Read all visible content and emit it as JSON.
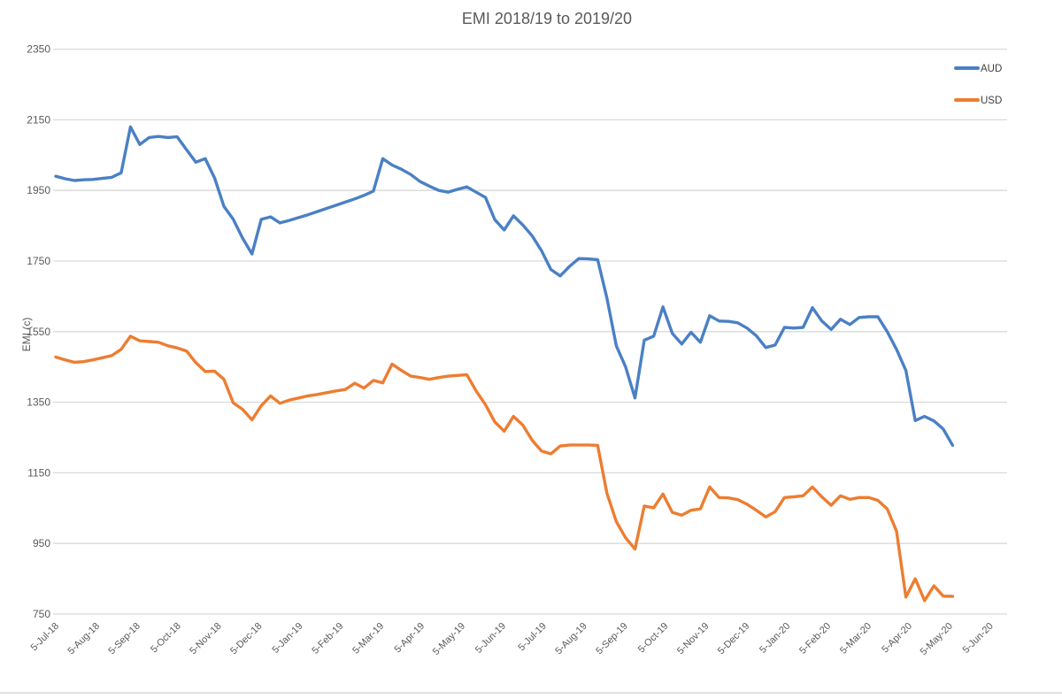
{
  "title": "EMI 2018/19 to 2019/20",
  "colors": {
    "aud": "#4A80C4",
    "usd": "#ED7D31",
    "text": "#595959",
    "legend_text": "#404040",
    "grid": "#D9D9D9",
    "page_border": "#D9D9D9"
  },
  "legend": {
    "aud_label": "AUD",
    "usd_label": "USD"
  },
  "chart_data": {
    "type": "line",
    "title": "EMI 2018/19 to 2019/20",
    "xlabel": "",
    "ylabel": "EMI (c)",
    "ylim": [
      750,
      2350
    ],
    "ytick_step": 200,
    "ytick_labels": [
      "2350",
      "2150",
      "1950",
      "1750",
      "1550",
      "1350",
      "1150",
      "950",
      "750"
    ],
    "grid": "horizontal",
    "legend_position": "top-right",
    "x_tick_labels": [
      "5-Jul-18",
      "5-Aug-18",
      "5-Sep-18",
      "5-Oct-18",
      "5-Nov-18",
      "5-Dec-18",
      "5-Jan-19",
      "5-Feb-19",
      "5-Mar-19",
      "5-Apr-19",
      "5-May-19",
      "5-Jun-19",
      "5-Jul-19",
      "5-Aug-19",
      "5-Sep-19",
      "5-Oct-19",
      "5-Nov-19",
      "5-Dec-19",
      "5-Jan-20",
      "5-Feb-20",
      "5-Mar-20",
      "5-Apr-20",
      "5-May-20",
      "5-Jun-20"
    ],
    "x_unit": "weeks starting 5-Jul-18, monthly axis ticks",
    "series": [
      {
        "name": "AUD",
        "color": "#4A80C4",
        "values": [
          1990,
          1983,
          1978,
          1980,
          1981,
          1984,
          1987,
          2000,
          2130,
          2080,
          2100,
          2103,
          2100,
          2102,
          2065,
          2030,
          2040,
          1985,
          1905,
          1868,
          1815,
          1770,
          1868,
          1875,
          1858,
          1865,
          1873,
          1881,
          1890,
          1899,
          1908,
          1917,
          1926,
          1936,
          1948,
          2040,
          2022,
          2010,
          1995,
          1975,
          1962,
          1950,
          1945,
          1953,
          1960,
          1945,
          1930,
          1867,
          1838,
          1878,
          1852,
          1821,
          1779,
          1726,
          1708,
          1735,
          1757,
          1756,
          1754,
          1645,
          1510,
          1450,
          1362,
          1526,
          1537,
          1620,
          1545,
          1515,
          1548,
          1520,
          1595,
          1580,
          1579,
          1575,
          1560,
          1538,
          1505,
          1512,
          1562,
          1560,
          1562,
          1618,
          1580,
          1556,
          1585,
          1570,
          1590,
          1592,
          1592,
          1550,
          1500,
          1440,
          1298,
          1310,
          1297,
          1274,
          1228
        ]
      },
      {
        "name": "USD",
        "color": "#ED7D31",
        "values": [
          1478,
          1470,
          1463,
          1465,
          1470,
          1476,
          1482,
          1500,
          1537,
          1524,
          1522,
          1520,
          1510,
          1504,
          1495,
          1462,
          1437,
          1438,
          1415,
          1348,
          1330,
          1300,
          1340,
          1368,
          1347,
          1356,
          1362,
          1368,
          1372,
          1377,
          1382,
          1386,
          1404,
          1390,
          1412,
          1405,
          1458,
          1440,
          1424,
          1420,
          1415,
          1420,
          1424,
          1426,
          1428,
          1382,
          1343,
          1294,
          1268,
          1310,
          1285,
          1242,
          1212,
          1204,
          1226,
          1229,
          1229,
          1229,
          1228,
          1092,
          1012,
          966,
          934,
          1056,
          1051,
          1090,
          1038,
          1030,
          1044,
          1048,
          1110,
          1080,
          1079,
          1074,
          1061,
          1044,
          1025,
          1040,
          1080,
          1082,
          1085,
          1110,
          1082,
          1058,
          1085,
          1075,
          1080,
          1080,
          1072,
          1048,
          985,
          798,
          850,
          788,
          830,
          801,
          800
        ]
      }
    ]
  }
}
